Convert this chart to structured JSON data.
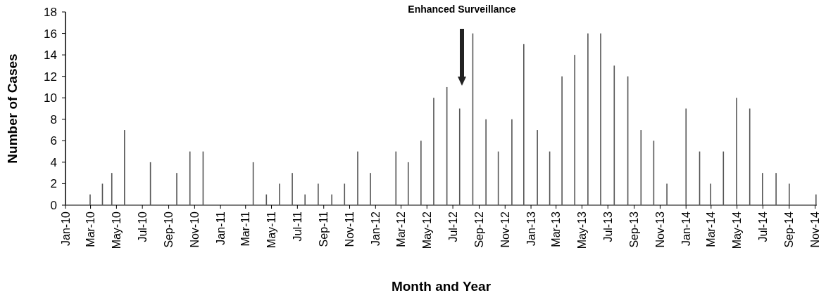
{
  "chart_data": {
    "type": "bar",
    "xlabel": "Month and Year",
    "ylabel": "Number of Cases",
    "color": "#555555",
    "x": [
      "2010-02-28",
      "2010-03-29",
      "2010-04-20",
      "2010-05-20",
      "2010-07-20",
      "2010-09-20",
      "2010-10-21",
      "2010-11-21",
      "2011-03-19",
      "2011-04-19",
      "2011-05-20",
      "2011-06-19",
      "2011-07-19",
      "2011-08-19",
      "2011-09-20",
      "2011-10-20",
      "2011-11-20",
      "2011-12-20",
      "2012-02-18",
      "2012-03-18",
      "2012-04-17",
      "2012-05-17",
      "2012-06-17",
      "2012-07-17",
      "2012-08-17",
      "2012-09-17",
      "2012-10-16",
      "2012-11-17",
      "2012-12-15",
      "2013-01-16",
      "2013-02-14",
      "2013-03-15",
      "2013-04-14",
      "2013-05-15",
      "2013-06-14",
      "2013-07-16",
      "2013-08-17",
      "2013-09-17",
      "2013-10-17",
      "2013-11-17",
      "2014-01-01",
      "2014-02-02",
      "2014-02-28",
      "2014-03-30",
      "2014-04-30",
      "2014-05-31",
      "2014-06-30",
      "2014-08-01",
      "2014-09-01",
      "2014-11-03"
    ],
    "values": [
      1,
      2,
      3,
      7,
      4,
      3,
      5,
      5,
      4,
      1,
      2,
      3,
      1,
      2,
      1,
      2,
      5,
      3,
      5,
      4,
      6,
      10,
      11,
      9,
      16,
      8,
      5,
      8,
      15,
      7,
      5,
      12,
      14,
      16,
      16,
      13,
      12,
      7,
      6,
      2,
      9,
      5,
      2,
      5,
      10,
      9,
      3,
      3,
      2,
      1
    ],
    "xlim": [
      "2010-01-01",
      "2014-11-05"
    ],
    "xticks": [
      {
        "value": "2010-01-01",
        "label": "Jan-10"
      },
      {
        "value": "2010-03-01",
        "label": "Mar-10"
      },
      {
        "value": "2010-05-01",
        "label": "May-10"
      },
      {
        "value": "2010-07-01",
        "label": "Jul-10"
      },
      {
        "value": "2010-09-01",
        "label": "Sep-10"
      },
      {
        "value": "2010-11-01",
        "label": "Nov-10"
      },
      {
        "value": "2011-01-01",
        "label": "Jan-11"
      },
      {
        "value": "2011-03-01",
        "label": "Mar-11"
      },
      {
        "value": "2011-05-01",
        "label": "May-11"
      },
      {
        "value": "2011-07-01",
        "label": "Jul-11"
      },
      {
        "value": "2011-09-01",
        "label": "Sep-11"
      },
      {
        "value": "2011-11-01",
        "label": "Nov-11"
      },
      {
        "value": "2012-01-01",
        "label": "Jan-12"
      },
      {
        "value": "2012-03-01",
        "label": "Mar-12"
      },
      {
        "value": "2012-05-01",
        "label": "May-12"
      },
      {
        "value": "2012-07-01",
        "label": "Jul-12"
      },
      {
        "value": "2012-09-01",
        "label": "Sep-12"
      },
      {
        "value": "2012-11-01",
        "label": "Nov-12"
      },
      {
        "value": "2013-01-01",
        "label": "Jan-13"
      },
      {
        "value": "2013-03-01",
        "label": "Mar-13"
      },
      {
        "value": "2013-05-01",
        "label": "May-13"
      },
      {
        "value": "2013-07-01",
        "label": "Jul-13"
      },
      {
        "value": "2013-09-01",
        "label": "Sep-13"
      },
      {
        "value": "2013-11-01",
        "label": "Nov-13"
      },
      {
        "value": "2014-01-01",
        "label": "Jan-14"
      },
      {
        "value": "2014-03-01",
        "label": "Mar-14"
      },
      {
        "value": "2014-05-01",
        "label": "May-14"
      },
      {
        "value": "2014-07-01",
        "label": "Jul-14"
      },
      {
        "value": "2014-09-01",
        "label": "Sep-14"
      },
      {
        "value": "2014-11-01",
        "label": "Nov-14"
      }
    ],
    "ylim": [
      0,
      18
    ],
    "yticks": [
      0,
      2,
      4,
      6,
      8,
      10,
      12,
      14,
      16,
      18
    ],
    "annotations": [
      "Enhanced Surveillance"
    ]
  }
}
